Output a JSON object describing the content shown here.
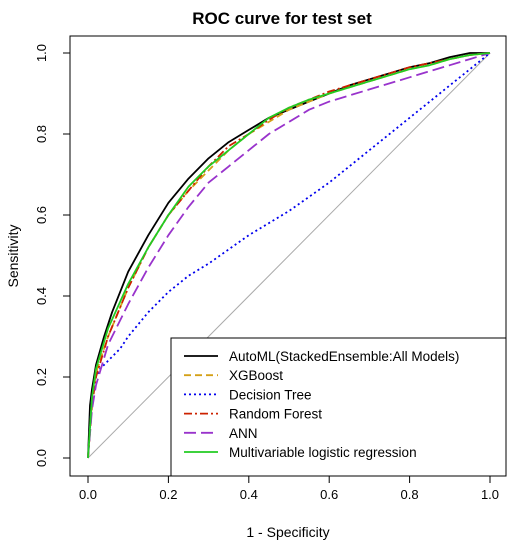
{
  "chart_data": {
    "type": "line",
    "title": "ROC curve for test set",
    "xlabel": "1 - Specificity",
    "ylabel": "Sensitivity",
    "xlim": [
      0,
      1
    ],
    "ylim": [
      0,
      1
    ],
    "xticks": [
      "0.0",
      "0.2",
      "0.4",
      "0.6",
      "0.8",
      "1.0"
    ],
    "yticks": [
      "0.0",
      "0.2",
      "0.4",
      "0.6",
      "0.8",
      "1.0"
    ],
    "grid": false,
    "legend_position": "bottom-right",
    "reference_line": {
      "x": [
        0,
        1
      ],
      "y": [
        0,
        1
      ],
      "color": "#aaaaaa"
    },
    "series": [
      {
        "name": "AutoML(StackedEnsemble:All Models)",
        "color": "#000000",
        "dash": "solid",
        "x": [
          0.0,
          0.005,
          0.01,
          0.02,
          0.04,
          0.06,
          0.1,
          0.15,
          0.2,
          0.25,
          0.3,
          0.35,
          0.4,
          0.45,
          0.5,
          0.55,
          0.6,
          0.65,
          0.7,
          0.75,
          0.8,
          0.85,
          0.9,
          0.95,
          1.0
        ],
        "y": [
          0.0,
          0.13,
          0.17,
          0.23,
          0.3,
          0.36,
          0.46,
          0.55,
          0.63,
          0.69,
          0.74,
          0.78,
          0.81,
          0.84,
          0.86,
          0.88,
          0.9,
          0.92,
          0.935,
          0.95,
          0.965,
          0.975,
          0.99,
          1.0,
          1.0
        ]
      },
      {
        "name": "XGBoost",
        "color": "#d4a017",
        "dash": "dashed",
        "x": [
          0.0,
          0.01,
          0.02,
          0.05,
          0.1,
          0.15,
          0.2,
          0.25,
          0.3,
          0.35,
          0.4,
          0.45,
          0.5,
          0.55,
          0.6,
          0.65,
          0.7,
          0.75,
          0.8,
          0.85,
          0.9,
          0.95,
          1.0
        ],
        "y": [
          0.0,
          0.14,
          0.21,
          0.3,
          0.42,
          0.52,
          0.6,
          0.66,
          0.71,
          0.76,
          0.8,
          0.83,
          0.86,
          0.88,
          0.9,
          0.915,
          0.93,
          0.945,
          0.96,
          0.97,
          0.985,
          0.995,
          1.0
        ]
      },
      {
        "name": "Decision Tree",
        "color": "#0000ee",
        "dash": "dotted",
        "x": [
          0.0,
          0.01,
          0.02,
          0.03,
          0.05,
          0.08,
          0.1,
          0.15,
          0.2,
          0.25,
          0.3,
          0.4,
          0.5,
          0.6,
          0.7,
          0.8,
          0.9,
          1.0
        ],
        "y": [
          0.0,
          0.15,
          0.2,
          0.22,
          0.24,
          0.27,
          0.3,
          0.36,
          0.41,
          0.45,
          0.48,
          0.55,
          0.61,
          0.68,
          0.76,
          0.84,
          0.92,
          1.0
        ]
      },
      {
        "name": "Random Forest",
        "color": "#cc2200",
        "dash": "dotdash",
        "x": [
          0.0,
          0.01,
          0.02,
          0.05,
          0.1,
          0.15,
          0.2,
          0.25,
          0.3,
          0.35,
          0.4,
          0.45,
          0.5,
          0.55,
          0.6,
          0.65,
          0.7,
          0.75,
          0.8,
          0.85,
          0.9,
          0.95,
          1.0
        ],
        "y": [
          0.0,
          0.13,
          0.2,
          0.3,
          0.42,
          0.52,
          0.6,
          0.66,
          0.72,
          0.77,
          0.8,
          0.835,
          0.865,
          0.885,
          0.905,
          0.92,
          0.935,
          0.95,
          0.965,
          0.975,
          0.985,
          0.995,
          1.0
        ]
      },
      {
        "name": "ANN",
        "color": "#9933cc",
        "dash": "longdash",
        "x": [
          0.0,
          0.01,
          0.02,
          0.05,
          0.1,
          0.15,
          0.2,
          0.25,
          0.3,
          0.35,
          0.4,
          0.45,
          0.5,
          0.55,
          0.6,
          0.65,
          0.7,
          0.75,
          0.8,
          0.85,
          0.9,
          0.95,
          1.0
        ],
        "y": [
          0.0,
          0.12,
          0.18,
          0.28,
          0.38,
          0.47,
          0.55,
          0.62,
          0.68,
          0.72,
          0.76,
          0.8,
          0.83,
          0.86,
          0.88,
          0.895,
          0.91,
          0.925,
          0.94,
          0.955,
          0.97,
          0.985,
          1.0
        ]
      },
      {
        "name": "Multivariable  logistic regression",
        "color": "#22cc22",
        "dash": "solid",
        "x": [
          0.0,
          0.01,
          0.02,
          0.05,
          0.1,
          0.15,
          0.2,
          0.25,
          0.3,
          0.35,
          0.4,
          0.45,
          0.5,
          0.55,
          0.6,
          0.65,
          0.7,
          0.75,
          0.8,
          0.85,
          0.9,
          0.95,
          1.0
        ],
        "y": [
          0.0,
          0.15,
          0.22,
          0.32,
          0.43,
          0.52,
          0.6,
          0.67,
          0.72,
          0.76,
          0.8,
          0.84,
          0.865,
          0.885,
          0.9,
          0.915,
          0.93,
          0.945,
          0.96,
          0.97,
          0.985,
          0.995,
          1.0
        ]
      }
    ]
  }
}
